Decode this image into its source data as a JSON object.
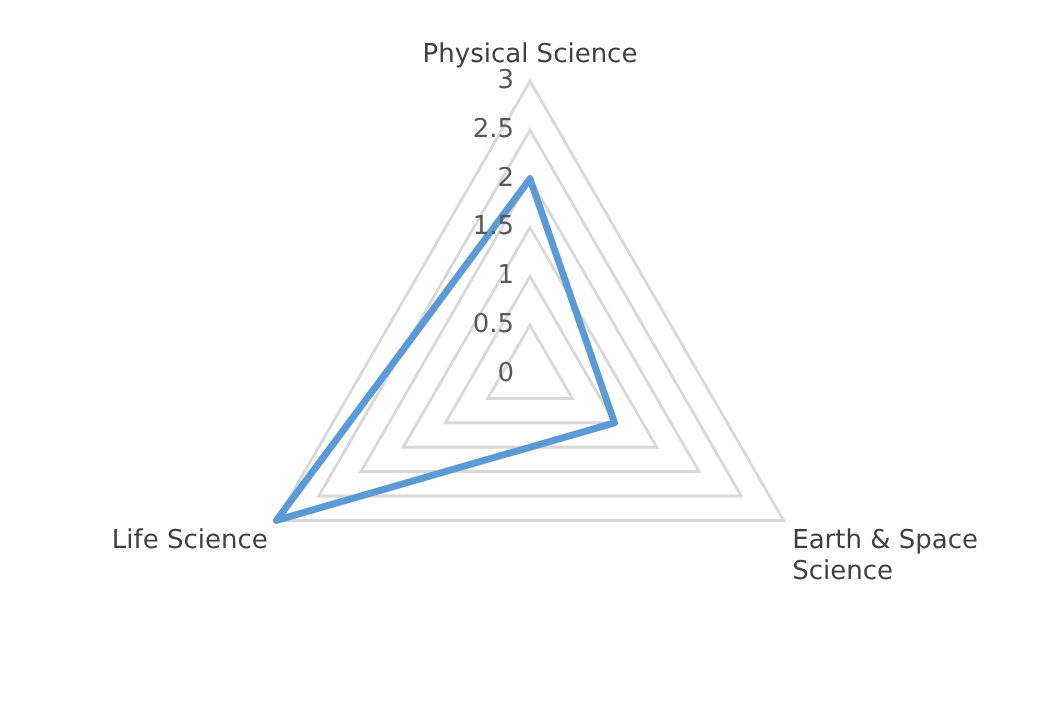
{
  "chart_data": {
    "type": "radar",
    "categories": [
      "Physical Science",
      "Earth & Space Science",
      "Life Science"
    ],
    "series": [
      {
        "color": "#5b9bd5",
        "values": [
          2,
          1,
          3
        ]
      }
    ],
    "ylim": [
      0,
      3
    ],
    "yticks": [
      0,
      0.5,
      1,
      1.5,
      2,
      2.5,
      3
    ],
    "grid": true,
    "legend": false,
    "marker": "none",
    "line_style": "solid"
  }
}
